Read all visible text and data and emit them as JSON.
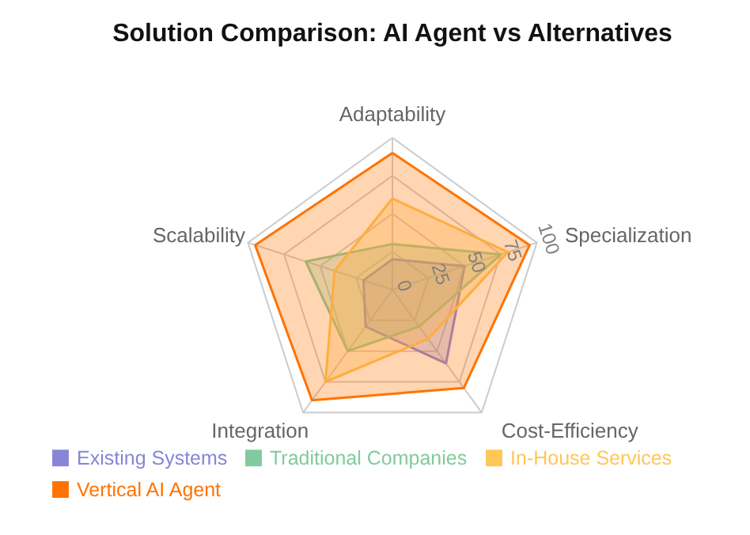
{
  "chart_data": {
    "type": "radar",
    "title": "Solution Comparison: AI Agent vs Alternatives",
    "categories": [
      "Adaptability",
      "Specialization",
      "Cost-Efficiency",
      "Integration",
      "Scalability"
    ],
    "series": [
      {
        "name": "Existing Systems",
        "color": "#8884d8",
        "values": [
          20,
          50,
          60,
          30,
          20
        ]
      },
      {
        "name": "Traditional Companies",
        "color": "#82ca9d",
        "values": [
          30,
          75,
          30,
          50,
          60
        ]
      },
      {
        "name": "In-House Services",
        "color": "#ffc658",
        "values": [
          60,
          80,
          40,
          75,
          40
        ]
      },
      {
        "name": "Vertical AI Agent",
        "color": "#ff7300",
        "values": [
          90,
          95,
          80,
          90,
          95
        ]
      }
    ],
    "ylim": [
      0,
      100
    ],
    "yticks": [
      0,
      25,
      50,
      75,
      100
    ],
    "grid": true,
    "legend": "bottom"
  }
}
